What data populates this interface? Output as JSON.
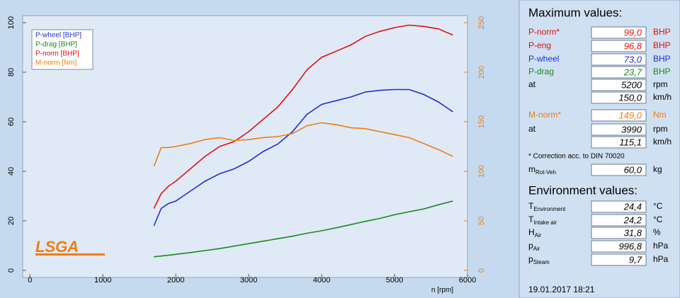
{
  "chart_data": {
    "type": "line",
    "x_label": "n [rpm]",
    "logo": "LSGA",
    "x": [
      1700,
      1800,
      1900,
      2000,
      2200,
      2400,
      2600,
      2800,
      3000,
      3200,
      3400,
      3600,
      3800,
      4000,
      4200,
      4400,
      4600,
      4800,
      5000,
      5200,
      5400,
      5600,
      5800
    ],
    "series": [
      {
        "name": "P-wheel [BHP]",
        "color": "#1f2fd0",
        "values": [
          18,
          25,
          27,
          28,
          32,
          36,
          39,
          41,
          44,
          48,
          51,
          56,
          63,
          67,
          68.5,
          70,
          72,
          72.7,
          73,
          73,
          71,
          68,
          64
        ]
      },
      {
        "name": "P-drag [BHP]",
        "color": "#1a8a1a",
        "values": [
          5.5,
          5.8,
          6.1,
          6.5,
          7.2,
          8,
          8.8,
          9.8,
          10.8,
          11.8,
          12.8,
          13.8,
          15,
          16,
          17.2,
          18.5,
          19.8,
          21,
          22.5,
          23.7,
          24.8,
          26.5,
          28
        ]
      },
      {
        "name": "P-norm [BHP]",
        "color": "#e01010",
        "values": [
          25,
          31,
          34,
          36,
          41,
          46,
          50,
          52,
          56,
          61,
          66,
          73,
          81,
          86,
          88.5,
          91,
          94.5,
          96.5,
          98,
          99,
          98.5,
          97.5,
          95
        ]
      },
      {
        "name": "M-norm [Nm]",
        "color": "#f07d10",
        "axis": "y2",
        "values": [
          105,
          124,
          124,
          125,
          128,
          132,
          134,
          131,
          132,
          134,
          135,
          138,
          146,
          149,
          147,
          144,
          143,
          140,
          137,
          134,
          128,
          122,
          115
        ]
      }
    ],
    "xlim": [
      -100,
      6000
    ],
    "xticks": [
      0,
      1000,
      2000,
      3000,
      4000,
      5000,
      6000
    ],
    "ylim": [
      0,
      100
    ],
    "yticks": [
      0,
      20,
      40,
      60,
      80,
      100
    ],
    "y2lim": [
      0,
      250
    ],
    "y2ticks": [
      0,
      50,
      100,
      150,
      200,
      250
    ],
    "y2color": "#f07d10",
    "grid": false,
    "legend": "top-left"
  },
  "panel": {
    "max_title": "Maximum values:",
    "max_rows": [
      {
        "label": "P-norm*",
        "value": "99,0",
        "unit": "BHP",
        "color": "#e01010"
      },
      {
        "label": "P-eng",
        "value": "96,8",
        "unit": "BHP",
        "color": "#e01010"
      },
      {
        "label": "P-wheel",
        "value": "73,0",
        "unit": "BHP",
        "color": "#1f2fd0"
      },
      {
        "label": "P-drag",
        "value": "23,7",
        "unit": "BHP",
        "color": "#1a8a1a"
      },
      {
        "label": "at",
        "value": "5200",
        "unit": "rpm",
        "color": "#000000"
      },
      {
        "value": "150,0",
        "unit": "km/h",
        "color": "#000000"
      },
      {
        "label": "M-norm*",
        "value": "149,0",
        "unit": "Nm",
        "color": "#f07d10"
      },
      {
        "label": "at",
        "value": "3990",
        "unit": "rpm",
        "color": "#000000"
      },
      {
        "value": "115,1",
        "unit": "km/h",
        "color": "#000000"
      }
    ],
    "note": "* Correction acc. to DIN 70020",
    "mass": {
      "label": "m",
      "label_sub": "Rot-Veh",
      "value": "60,0",
      "unit": "kg"
    },
    "env_title": "Environment values:",
    "env_rows": [
      {
        "label": "T",
        "label_sub": "Environment",
        "value": "24,4",
        "unit": "°C"
      },
      {
        "label": "T",
        "label_sub": "Intake air",
        "value": "24,2",
        "unit": "°C"
      },
      {
        "label": "H",
        "label_sub": "Air",
        "value": "31,8",
        "unit": "%"
      },
      {
        "label": "p",
        "label_sub": "Air",
        "value": "996,8",
        "unit": "hPa"
      },
      {
        "label": "p",
        "label_sub": "Steam",
        "value": "9,7",
        "unit": "hPa"
      }
    ],
    "timestamp": "19.01.2017  18:21"
  }
}
